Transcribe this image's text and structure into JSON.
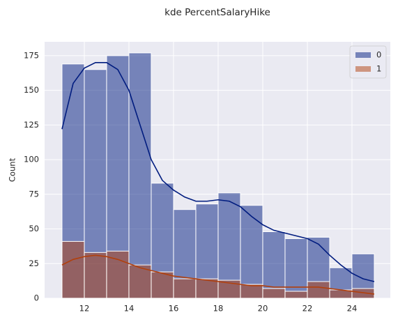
{
  "chart_data": {
    "type": "histogram",
    "title": "kde PercentSalaryHike",
    "ylabel": "Count",
    "bins": [
      11,
      12,
      13,
      14,
      15,
      16,
      17,
      18,
      19,
      20,
      21,
      22,
      23,
      24,
      25
    ],
    "series": [
      {
        "name": "0",
        "color": "#001c7f",
        "values": [
          169,
          165,
          175,
          177,
          83,
          64,
          68,
          76,
          67,
          48,
          43,
          44,
          22,
          32
        ]
      },
      {
        "name": "1",
        "color": "#b1400d",
        "values": [
          41,
          33,
          34,
          24,
          19,
          14,
          14,
          13,
          10,
          7,
          5,
          12,
          6,
          7
        ]
      }
    ],
    "kde": {
      "x": [
        11,
        11.5,
        12,
        12.5,
        13,
        13.5,
        14,
        14.5,
        15,
        15.5,
        16,
        16.5,
        17,
        17.5,
        18,
        18.5,
        19,
        19.5,
        20,
        20.5,
        21,
        21.5,
        22,
        22.5,
        23,
        23.5,
        24,
        24.5,
        25
      ],
      "series": [
        {
          "color": "#001c7f",
          "values": [
            122,
            155,
            166,
            170,
            170,
            165,
            150,
            125,
            100,
            85,
            78,
            73,
            70,
            70,
            71,
            70,
            66,
            59,
            53,
            49,
            47,
            45,
            43,
            39,
            31,
            24,
            18,
            14,
            12
          ]
        },
        {
          "color": "#b1400d",
          "values": [
            24,
            28,
            30,
            31,
            30,
            28,
            25,
            22,
            20,
            18,
            16,
            15,
            14,
            13,
            12,
            11,
            10,
            9,
            9,
            8,
            8,
            8,
            8,
            8,
            7,
            6,
            5,
            4,
            3
          ]
        }
      ]
    },
    "fill_opacity": 0.5,
    "xlim": [
      10.22,
      25.72
    ],
    "ylim": [
      0,
      185
    ],
    "xticks": [
      12,
      14,
      16,
      18,
      20,
      22,
      24
    ],
    "yticks": [
      0,
      25,
      50,
      75,
      100,
      125,
      150,
      175
    ],
    "grid": true,
    "legend": "upper right",
    "background": "#eaeaf2"
  }
}
